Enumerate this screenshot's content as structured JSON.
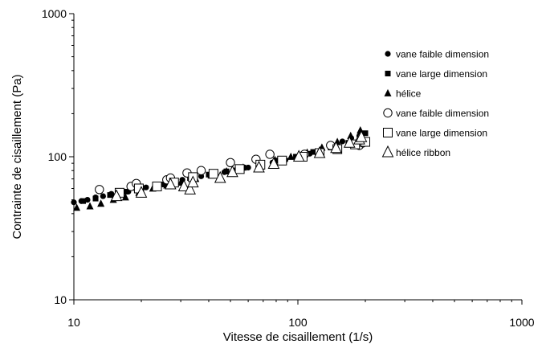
{
  "chart_data": {
    "type": "scatter",
    "xlabel": "Vitesse de cisaillement (1/s)",
    "ylabel": "Contrainte de cisaillement (Pa)",
    "x_scale": "log",
    "y_scale": "log",
    "xlim": [
      10,
      1000
    ],
    "ylim": [
      10,
      1000
    ],
    "x_ticks": [
      "10",
      "100",
      "1000"
    ],
    "y_ticks": [
      "10",
      "100",
      "1000"
    ],
    "grid": false,
    "legend_position": "right",
    "series": [
      {
        "name": "vane faible dimension",
        "marker": "filled-circle",
        "points": [
          [
            10,
            48
          ],
          [
            10.8,
            49
          ],
          [
            11.5,
            50
          ],
          [
            12.5,
            52
          ],
          [
            13.5,
            53
          ],
          [
            14.7,
            55
          ],
          [
            16,
            56
          ],
          [
            17.5,
            57
          ],
          [
            19,
            59
          ],
          [
            21,
            61
          ],
          [
            23,
            62
          ],
          [
            25,
            64
          ],
          [
            28,
            67
          ],
          [
            30.5,
            69
          ],
          [
            33.5,
            71
          ],
          [
            37,
            73
          ],
          [
            42,
            76
          ],
          [
            47,
            78
          ],
          [
            53,
            81
          ],
          [
            60,
            84
          ],
          [
            68,
            87
          ],
          [
            77,
            91
          ],
          [
            88,
            95
          ],
          [
            100,
            100
          ],
          [
            113,
            105
          ],
          [
            128,
            112
          ],
          [
            143,
            120
          ],
          [
            158,
            128
          ],
          [
            173,
            135
          ],
          [
            188,
            140
          ]
        ]
      },
      {
        "name": "vane large dimension",
        "marker": "filled-square",
        "points": [
          [
            11,
            49
          ],
          [
            12.5,
            51
          ],
          [
            14.5,
            54
          ],
          [
            17,
            57
          ],
          [
            20,
            60
          ],
          [
            23.5,
            63
          ],
          [
            28,
            67
          ],
          [
            33,
            71
          ],
          [
            40,
            75
          ],
          [
            48,
            79
          ],
          [
            57,
            84
          ],
          [
            68,
            88
          ],
          [
            82,
            94
          ],
          [
            98,
            100
          ],
          [
            117,
            108
          ],
          [
            140,
            116
          ],
          [
            168,
            125
          ],
          [
            200,
            146
          ]
        ]
      },
      {
        "name": "hélice",
        "marker": "filled-triangle",
        "points": [
          [
            10.3,
            44
          ],
          [
            11.8,
            45
          ],
          [
            13.2,
            47
          ],
          [
            15,
            50
          ],
          [
            17,
            52
          ],
          [
            19.5,
            56
          ],
          [
            22.5,
            60
          ],
          [
            26,
            63
          ],
          [
            30,
            66
          ],
          [
            35,
            70
          ],
          [
            41,
            74
          ],
          [
            48,
            79
          ],
          [
            57,
            84
          ],
          [
            67,
            89
          ],
          [
            79,
            95
          ],
          [
            93,
            100
          ],
          [
            110,
            107
          ],
          [
            128,
            116
          ],
          [
            150,
            127
          ],
          [
            172,
            140
          ],
          [
            190,
            153
          ]
        ]
      },
      {
        "name": "vane faible dimension",
        "marker": "open-circle",
        "points": [
          [
            13,
            59
          ],
          [
            18,
            62
          ],
          [
            19,
            65
          ],
          [
            26,
            69
          ],
          [
            27,
            71
          ],
          [
            32,
            77
          ],
          [
            37,
            80
          ],
          [
            50,
            91
          ],
          [
            65,
            96
          ],
          [
            75,
            104
          ],
          [
            107,
            104
          ],
          [
            140,
            120
          ],
          [
            188,
            120
          ],
          [
            195,
            125
          ]
        ]
      },
      {
        "name": "vane large dimension",
        "marker": "open-square",
        "points": [
          [
            16,
            56
          ],
          [
            19.5,
            60
          ],
          [
            23.5,
            62
          ],
          [
            28,
            66
          ],
          [
            34,
            72
          ],
          [
            42,
            76
          ],
          [
            55,
            82
          ],
          [
            68,
            88
          ],
          [
            85,
            94
          ],
          [
            105,
            100
          ],
          [
            125,
            106
          ],
          [
            150,
            113
          ],
          [
            180,
            122
          ],
          [
            200,
            127
          ]
        ]
      },
      {
        "name": "hélice ribbon",
        "marker": "open-triangle",
        "points": [
          [
            15.5,
            53
          ],
          [
            20,
            56
          ],
          [
            27,
            64
          ],
          [
            31,
            62
          ],
          [
            33,
            59
          ],
          [
            34,
            66
          ],
          [
            45,
            71
          ],
          [
            51,
            78
          ],
          [
            67,
            84
          ],
          [
            78,
            89
          ],
          [
            101,
            100
          ],
          [
            125,
            106
          ],
          [
            148,
            115
          ],
          [
            170,
            125
          ],
          [
            188,
            132
          ],
          [
            192,
            137
          ]
        ]
      }
    ]
  }
}
